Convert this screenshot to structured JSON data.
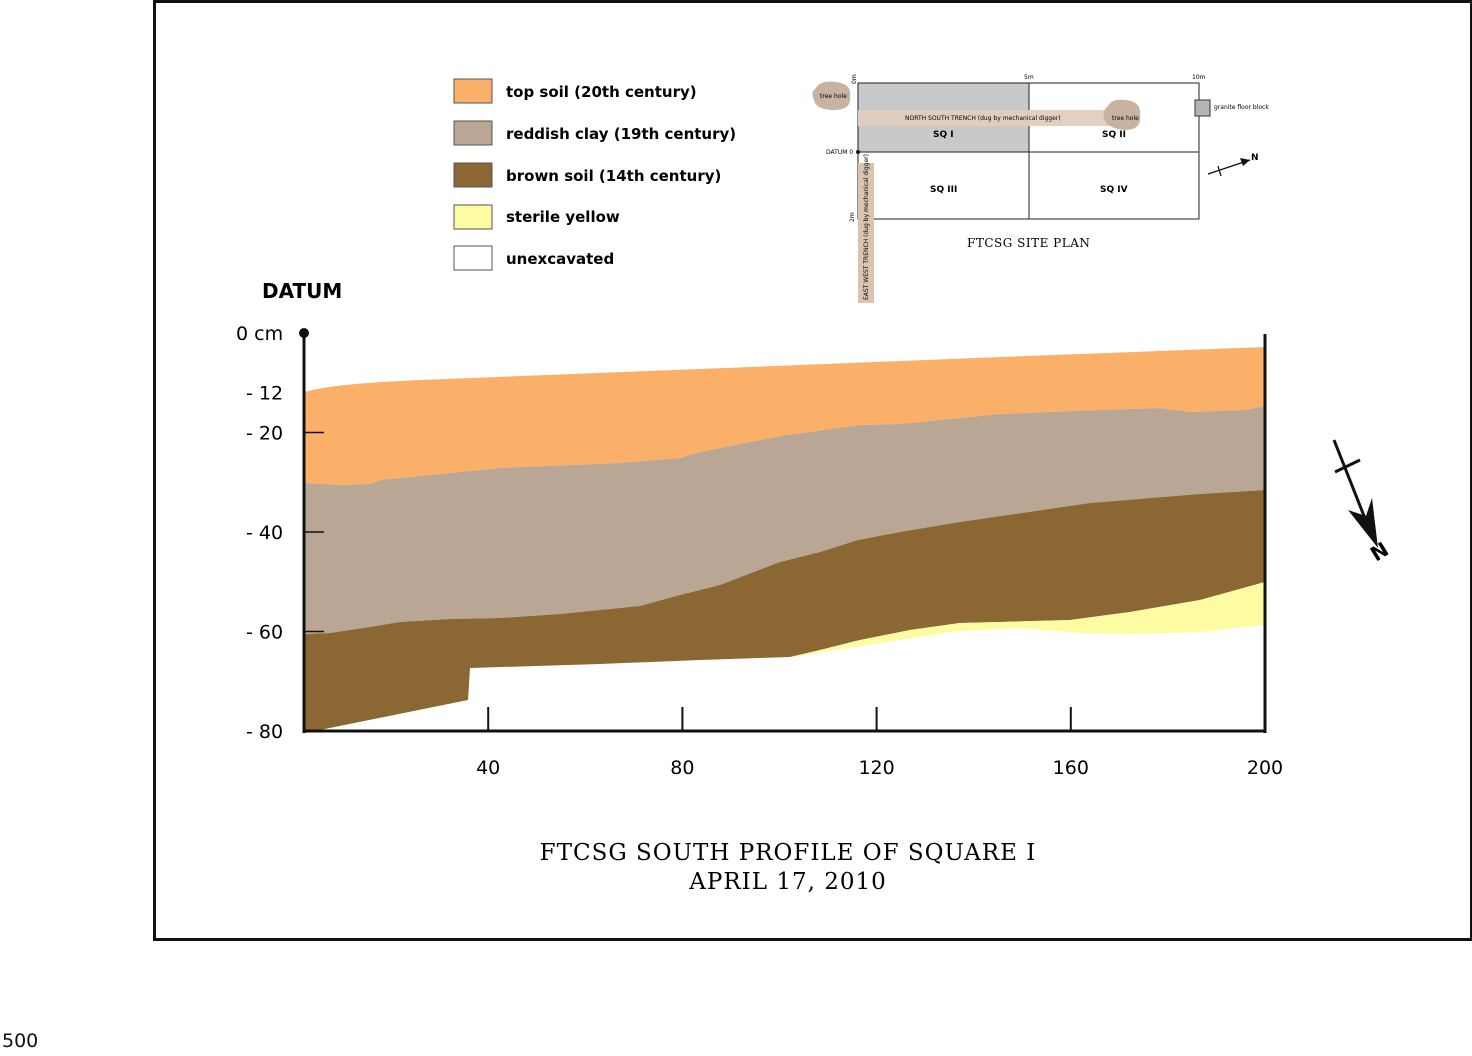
{
  "colors": {
    "top_soil": "#fbb06a",
    "reddish_clay": "#b9a694",
    "brown_soil": "#8b6733",
    "sterile_yellow": "#fdfca3",
    "unexcavated": "#ffffff",
    "ink": "#111111"
  },
  "legend": {
    "items": [
      {
        "key": "top_soil",
        "label": "top soil (20th century)"
      },
      {
        "key": "reddish_clay",
        "label": "reddish clay (19th century)"
      },
      {
        "key": "brown_soil",
        "label": "brown soil (14th century)"
      },
      {
        "key": "sterile_yellow",
        "label": "sterile yellow"
      },
      {
        "key": "unexcavated",
        "label": "unexcavated"
      }
    ]
  },
  "datum_label": "DATUM",
  "y_axis": {
    "ticks": [
      {
        "depth": 0,
        "label": "0 cm"
      },
      {
        "depth": -12,
        "label": "- 12"
      },
      {
        "depth": -20,
        "label": "- 20"
      },
      {
        "depth": -40,
        "label": "- 40"
      },
      {
        "depth": -60,
        "label": "- 60"
      },
      {
        "depth": -80,
        "label": "- 80"
      }
    ]
  },
  "x_axis": {
    "ticks": [
      {
        "value": 40,
        "label": "40"
      },
      {
        "value": 80,
        "label": "80"
      },
      {
        "value": 120,
        "label": "120"
      },
      {
        "value": 160,
        "label": "160"
      },
      {
        "value": 200,
        "label": "200"
      }
    ]
  },
  "site_plan": {
    "title": "FTCSG SITE PLAN",
    "squares": [
      "SQ I",
      "SQ II",
      "SQ III",
      "SQ IV"
    ],
    "north_south_trench": "NORTH SOUTH TRENCH (dug by mechanical digger)",
    "east_west_trench": "EAST WEST TRENCH (dug by mechanical digger)",
    "tree_hole_left": "tree hole",
    "tree_hole_right": "tree hole",
    "granite_block": "granite floor block",
    "datum": "DATUM 0",
    "scale_top_left": "0m",
    "scale_top_mid": "5m",
    "scale_top_right": "10m",
    "scale_left_top": "0m",
    "scale_left_bottom": "2m",
    "north_label": "N"
  },
  "north_arrow_label": "N",
  "title": {
    "line1": "FTCSG SOUTH PROFILE OF SQUARE I",
    "line2": "APRIL 17, 2010"
  },
  "page_number": "500"
}
